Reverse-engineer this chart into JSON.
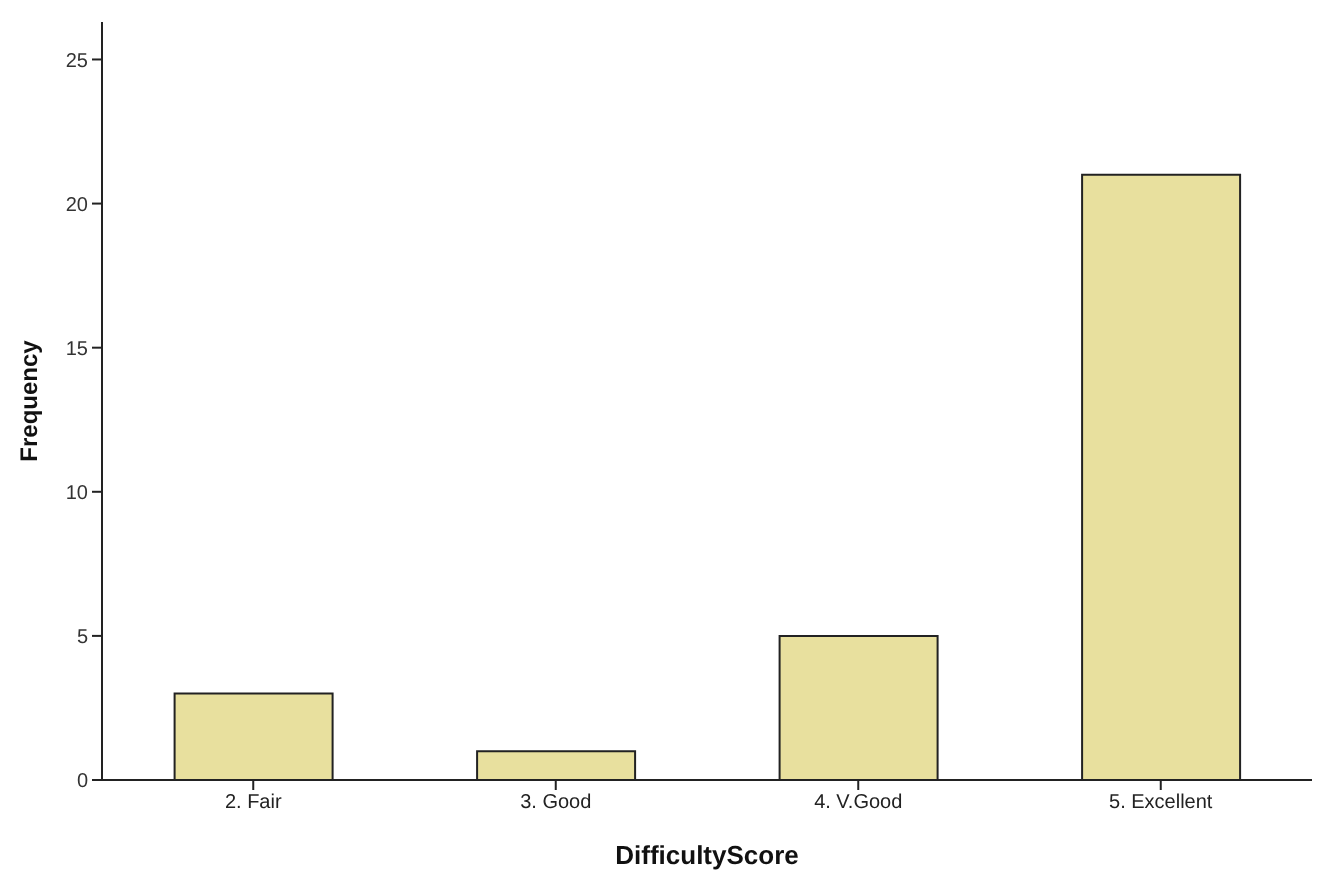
{
  "chart_data": {
    "type": "bar",
    "xlabel": "DifficultyScore",
    "ylabel": "Frequency",
    "categories": [
      "2. Fair",
      "3. Good",
      "4. V.Good",
      "5. Excellent"
    ],
    "values": [
      3,
      1,
      5,
      21
    ],
    "color": "#e8e09e",
    "ylim": [
      0,
      26.3
    ],
    "yticks": [
      0,
      5,
      10,
      15,
      20,
      25
    ],
    "grid": false,
    "legend": false
  }
}
